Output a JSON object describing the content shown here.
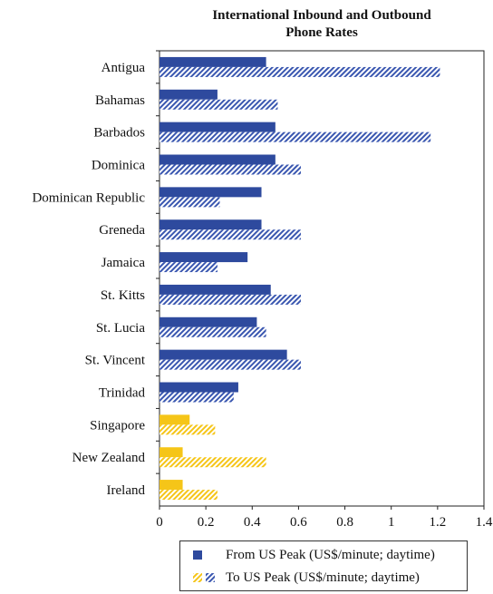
{
  "chart_data": {
    "type": "bar",
    "orientation": "horizontal",
    "title_lines": [
      "International Inbound and Outbound",
      "Phone Rates"
    ],
    "categories": [
      "Antigua",
      "Bahamas",
      "Barbados",
      "Dominica",
      "Dominican Republic",
      "Greneda",
      "Jamaica",
      "St. Kitts",
      "St. Lucia",
      "St. Vincent",
      "Trinidad",
      "Singapore",
      "New Zealand",
      "Ireland"
    ],
    "series": [
      {
        "name": "From US Peak (US$/minute; daytime)",
        "values": [
          0.46,
          0.25,
          0.5,
          0.5,
          0.44,
          0.44,
          0.38,
          0.48,
          0.42,
          0.55,
          0.34,
          0.13,
          0.1,
          0.1
        ]
      },
      {
        "name": "To US Peak (US$/minute; daytime)",
        "values": [
          1.21,
          0.51,
          1.17,
          0.61,
          0.26,
          0.61,
          0.25,
          0.61,
          0.46,
          0.61,
          0.32,
          0.24,
          0.46,
          0.25
        ]
      }
    ],
    "xlim": [
      0,
      1.4
    ],
    "xticks": [
      "0",
      "0.2",
      "0.4",
      "0.6",
      "0.8",
      "1",
      "1.2",
      "1.4"
    ],
    "xlabel": "",
    "ylabel": "",
    "grid": false,
    "legend_position": "bottom",
    "colors": {
      "caribbean_solid": "#2e4a9e",
      "caribbean_hatch": "#3a57b0",
      "other_solid": "#f5c518",
      "other_hatch": "#f5c518"
    },
    "highlight_categories": [
      "Singapore",
      "New Zealand",
      "Ireland"
    ]
  }
}
